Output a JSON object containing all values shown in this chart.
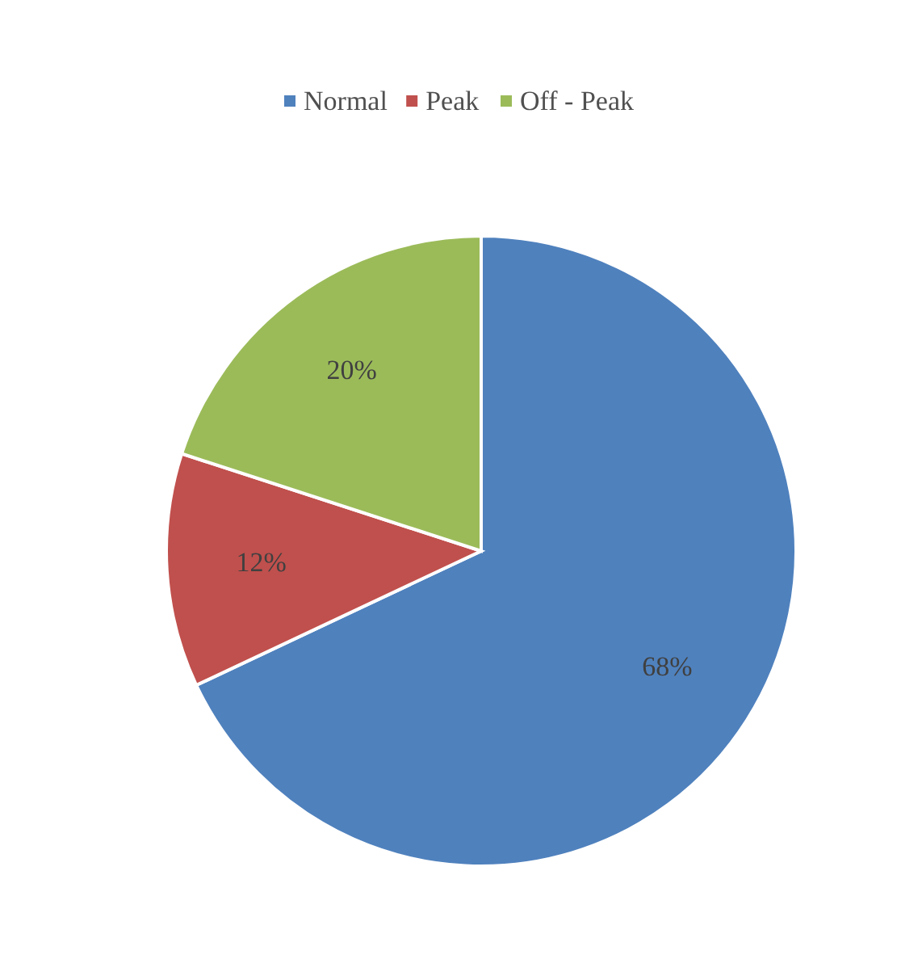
{
  "chart_data": {
    "type": "pie",
    "categories": [
      "Normal",
      "Peak",
      "Off - Peak"
    ],
    "values": [
      68,
      12,
      20
    ],
    "value_labels": [
      "68%",
      "12%",
      "20%"
    ],
    "colors": [
      "#4f81bd",
      "#c0504d",
      "#9bbb59"
    ],
    "legend": "top"
  }
}
